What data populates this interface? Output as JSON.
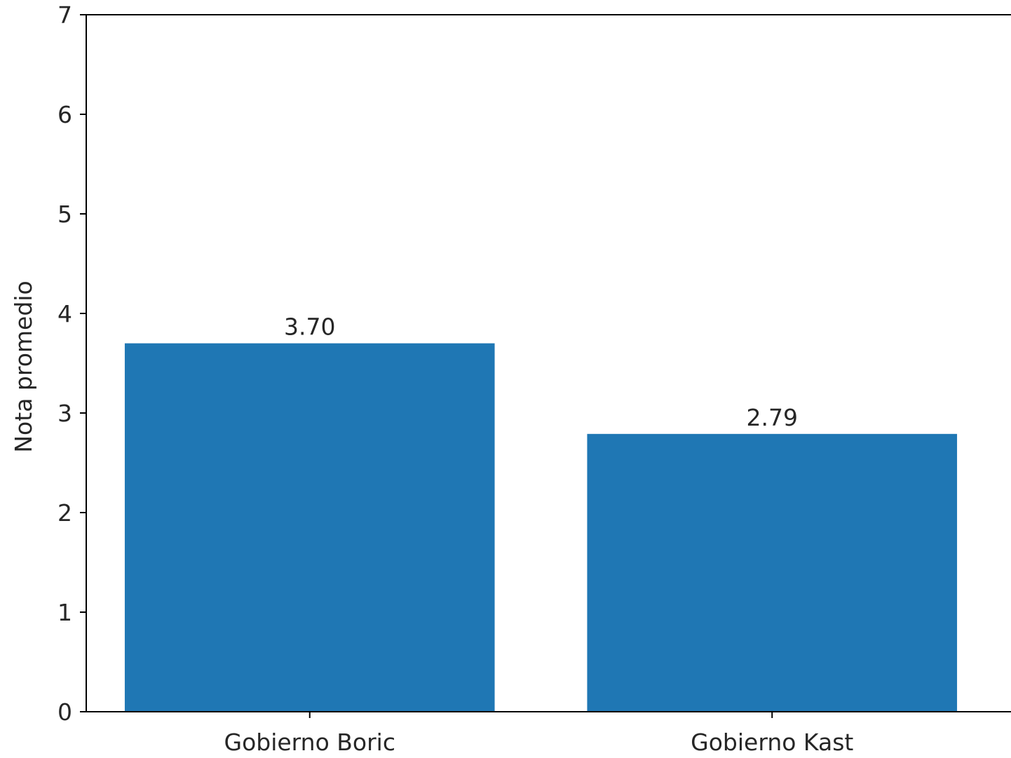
{
  "chart_data": {
    "type": "bar",
    "title": "",
    "xlabel": "",
    "ylabel": "Nota promedio",
    "categories": [
      "Gobierno Boric",
      "Gobierno Kast"
    ],
    "values": [
      3.7,
      2.79
    ],
    "data_labels": [
      "3.70",
      "2.79"
    ],
    "ylim": [
      0,
      7
    ],
    "yticks": [
      "0",
      "1",
      "2",
      "3",
      "4",
      "5",
      "6",
      "7"
    ],
    "bar_color": "#1f77b4",
    "grid": false,
    "legend": "none"
  }
}
